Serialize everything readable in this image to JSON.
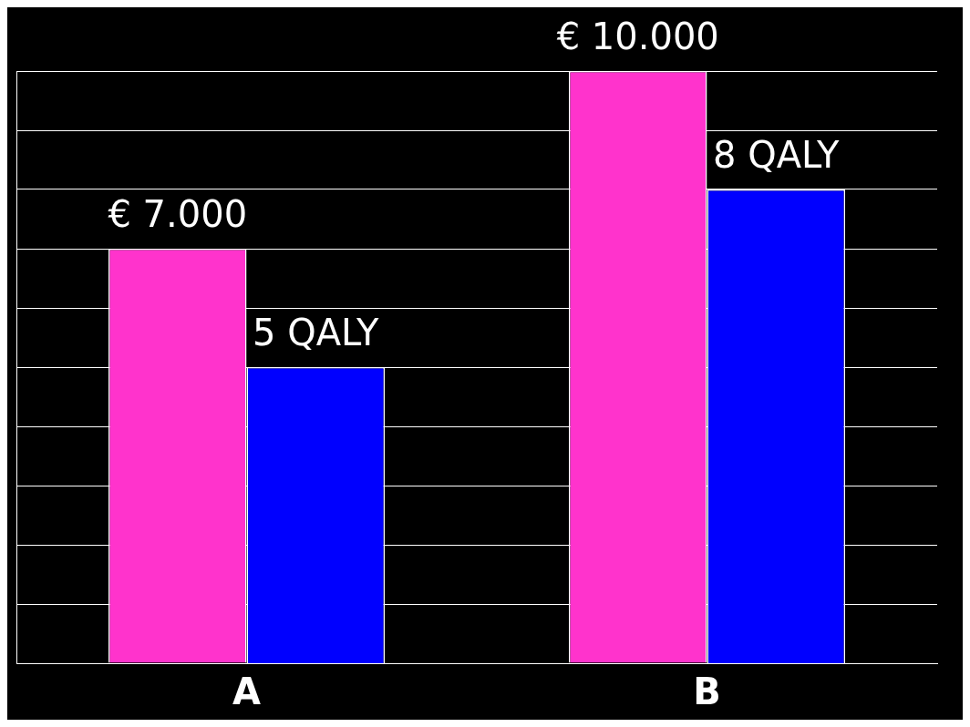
{
  "chart_data": {
    "type": "bar",
    "categories": [
      "A",
      "B"
    ],
    "series": [
      {
        "color": "#ff33cc",
        "values": [
          7000,
          10000
        ],
        "value_labels": [
          "€ 7.000",
          "€ 10.000"
        ]
      },
      {
        "color": "#0000ff",
        "values": [
          5,
          8
        ],
        "value_labels": [
          "5 QALY",
          "8 QALY"
        ],
        "axis": "y2"
      }
    ],
    "ylim": [
      0,
      10000
    ],
    "y2lim": [
      0,
      10
    ],
    "tick_labels": "x",
    "grid": "y",
    "legend": false
  }
}
